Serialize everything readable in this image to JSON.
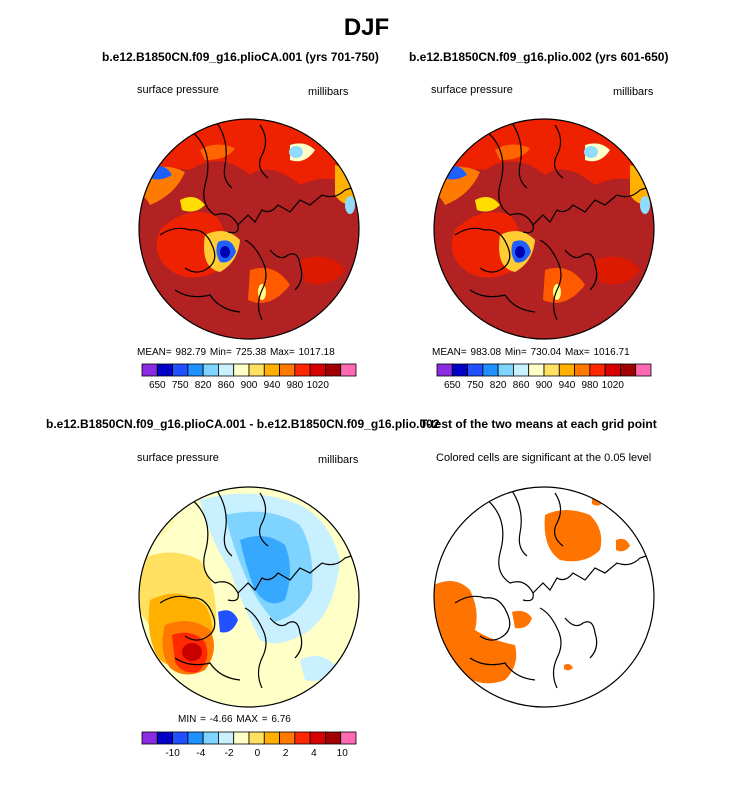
{
  "figure": {
    "title": "DJF"
  },
  "chart_data": [
    {
      "type": "heatmap",
      "title": "b.e12.B1850CN.f09_g16.plioCA.001 (yrs 701-750)",
      "left_label": "surface pressure",
      "right_label": "millibars",
      "stats": {
        "mean": "982.79",
        "min": "725.38",
        "max": "1017.18"
      },
      "stats_text": "MEAN=  982.79    Min=  725.38    Max=  1017.18",
      "colorbar": {
        "levels": [
          "650",
          "750",
          "820",
          "860",
          "900",
          "940",
          "980",
          "1020"
        ],
        "colors": [
          "#8a2be2",
          "#0000c8",
          "#2050ff",
          "#1e90ff",
          "#7fd4ff",
          "#c8f0ff",
          "#ffffc8",
          "#ffe060",
          "#ffb000",
          "#ff7800",
          "#ff2800",
          "#d80000",
          "#a00000",
          "#ff69b4"
        ]
      }
    },
    {
      "type": "heatmap",
      "title": "b.e12.B1850CN.f09_g16.plio.002 (yrs 601-650)",
      "left_label": "surface pressure",
      "right_label": "millibars",
      "stats": {
        "mean": "983.08",
        "min": "730.04",
        "max": "1016.71"
      },
      "stats_text": "MEAN=  983.08    Min=  730.04    Max=  1016.71",
      "colorbar": {
        "levels": [
          "650",
          "750",
          "820",
          "860",
          "900",
          "940",
          "980",
          "1020"
        ],
        "colors": [
          "#8a2be2",
          "#0000c8",
          "#2050ff",
          "#1e90ff",
          "#7fd4ff",
          "#c8f0ff",
          "#ffffc8",
          "#ffe060",
          "#ffb000",
          "#ff7800",
          "#ff2800",
          "#d80000",
          "#a00000",
          "#ff69b4"
        ]
      }
    },
    {
      "type": "heatmap",
      "title": "b.e12.B1850CN.f09_g16.plioCA.001 - b.e12.B1850CN.f09_g16.plio.002",
      "left_label": "surface pressure",
      "right_label": "millibars",
      "stats": {
        "min": "-4.66",
        "max": "6.76"
      },
      "stats_text": "MIN =    -4.66   MAX =     6.76",
      "colorbar": {
        "levels": [
          "-10",
          "-4",
          "-2",
          "0",
          "2",
          "4",
          "10"
        ],
        "colors": [
          "#8a2be2",
          "#0000c8",
          "#2050ff",
          "#1e90ff",
          "#7fd4ff",
          "#c8f0ff",
          "#ffffc8",
          "#ffe060",
          "#ffb000",
          "#ff7800",
          "#ff2800",
          "#d80000",
          "#a00000",
          "#ff69b4"
        ]
      }
    },
    {
      "type": "heatmap",
      "title": "T-test of the two means at each grid point",
      "subtitle": "Colored cells are significant at the 0.05 level",
      "significance_color": "#ff7300"
    }
  ]
}
